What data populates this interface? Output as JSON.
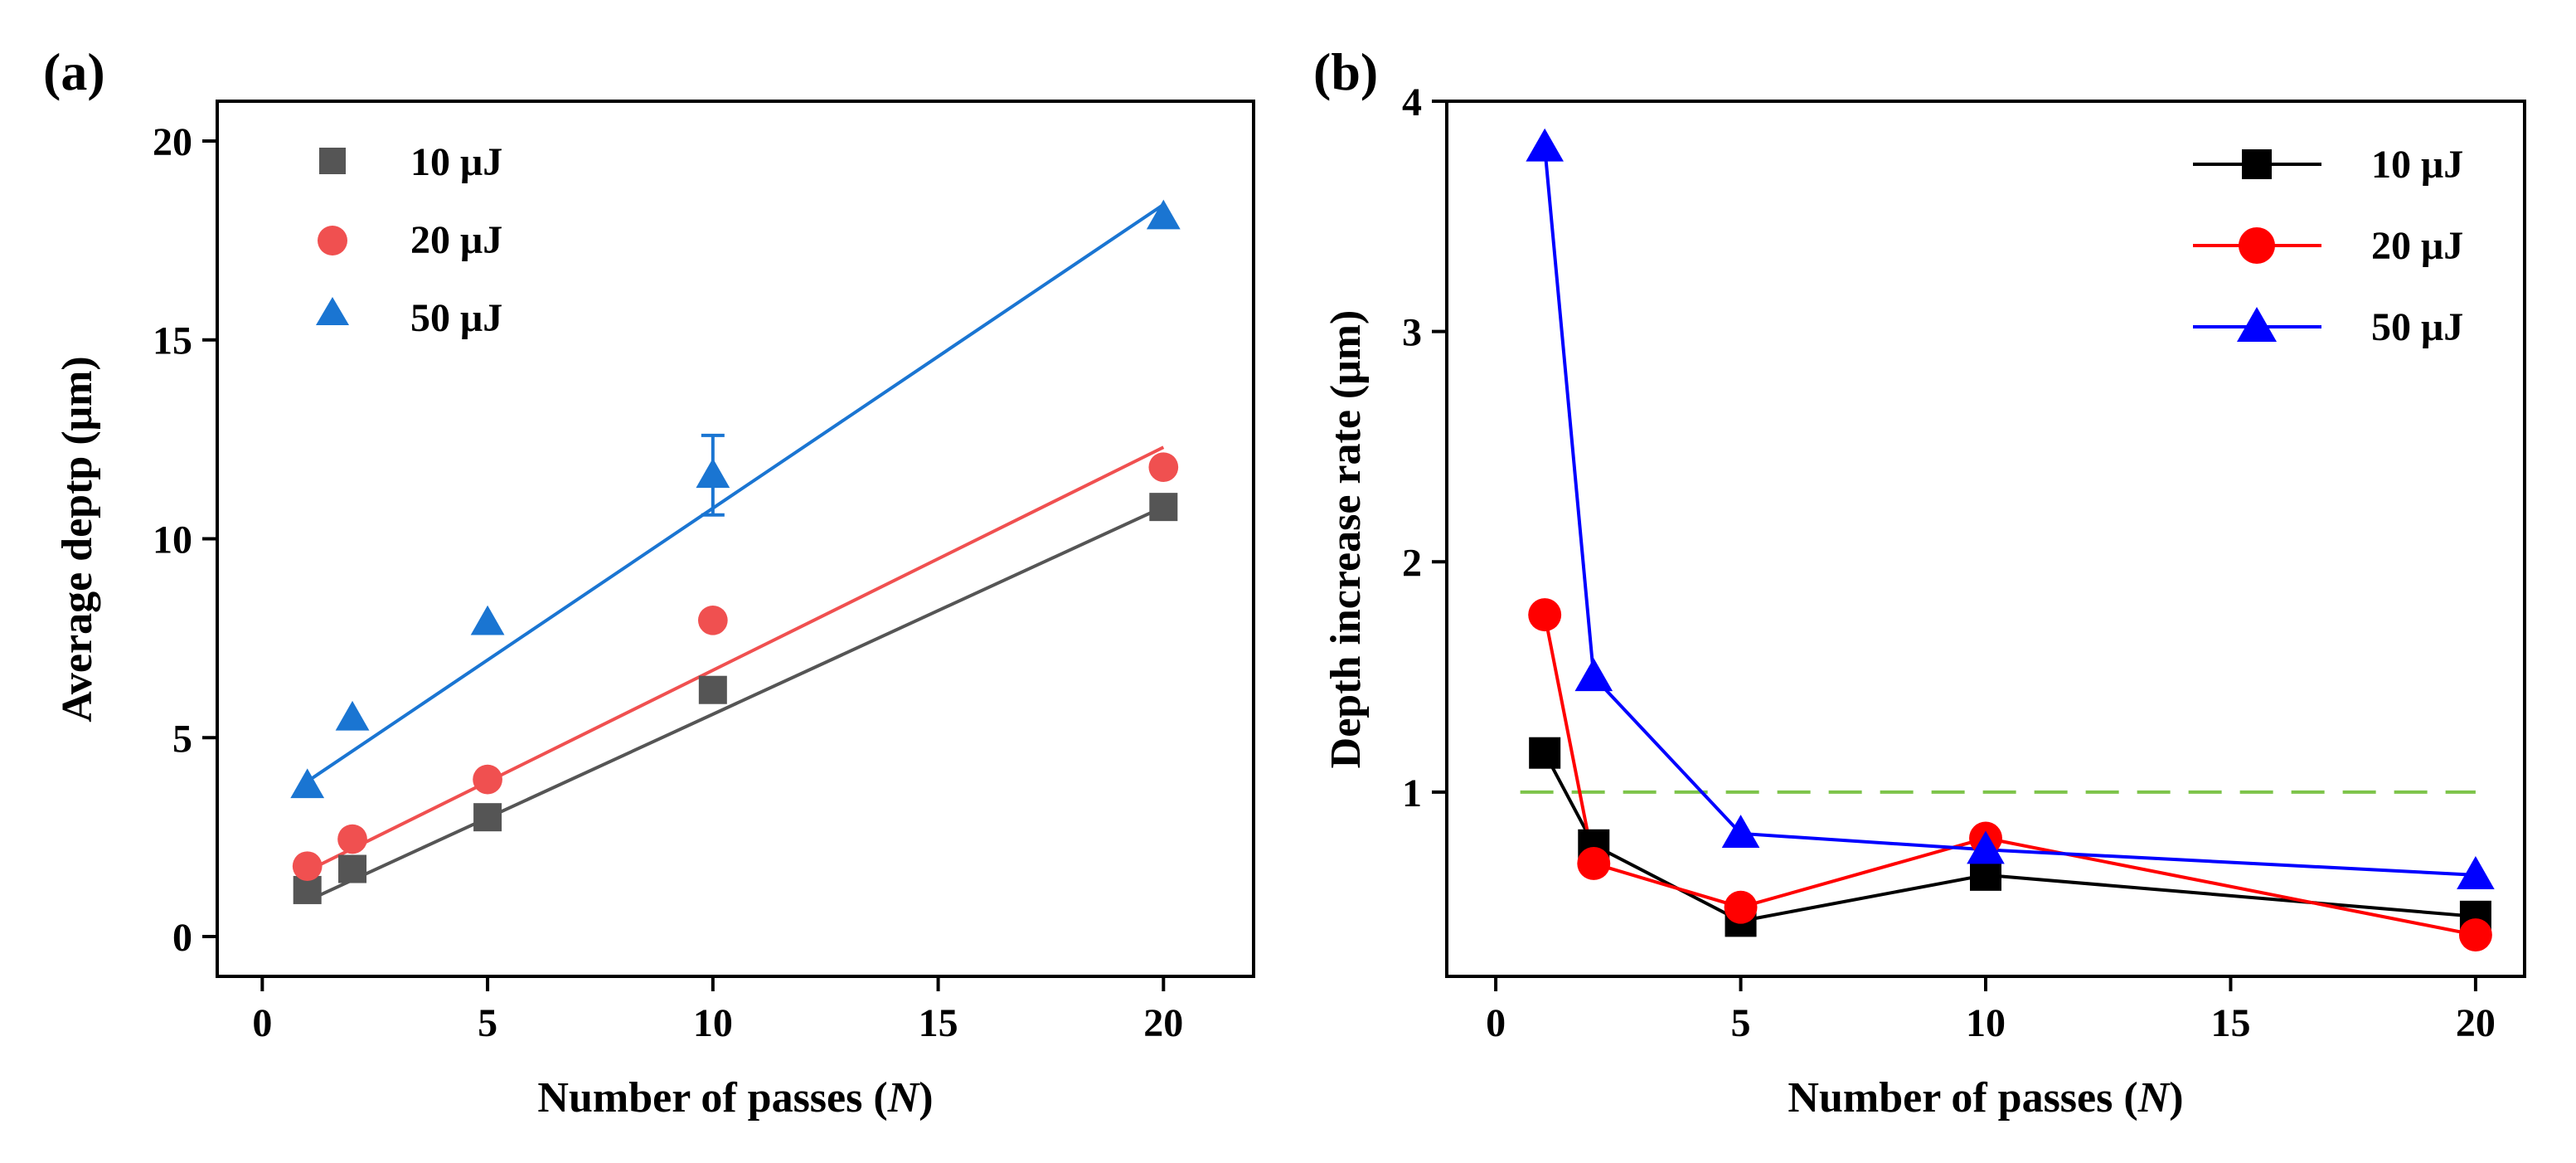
{
  "chart_data": [
    {
      "panel_label": "(a)",
      "type": "scatter",
      "xlabel_text": "Number of passes (",
      "xlabel_var": "N",
      "xlabel_end": ")",
      "ylabel": "Average deptp (μm)",
      "xlim": [
        -1,
        22
      ],
      "ylim": [
        -1,
        21
      ],
      "xticks": [
        0,
        5,
        10,
        15,
        20
      ],
      "yticks": [
        0,
        5,
        10,
        15,
        20
      ],
      "series": [
        {
          "name": "10 μJ",
          "color": "#555555",
          "marker": "square",
          "x": [
            1,
            2,
            5,
            10,
            20
          ],
          "y": [
            1.17,
            1.7,
            3.0,
            6.2,
            10.8
          ],
          "fit": [
            [
              1,
              0.9
            ],
            [
              20,
              10.8
            ]
          ]
        },
        {
          "name": "20 μJ",
          "color": "#f05050",
          "marker": "circle",
          "x": [
            1,
            2,
            5,
            10,
            20
          ],
          "y": [
            1.77,
            2.45,
            3.95,
            7.95,
            11.8
          ],
          "fit": [
            [
              1,
              1.65
            ],
            [
              20,
              12.3
            ]
          ]
        },
        {
          "name": "50 μJ",
          "color": "#1a75d2",
          "marker": "triangle",
          "x": [
            1,
            2,
            5,
            10,
            20
          ],
          "y": [
            3.8,
            5.5,
            7.9,
            11.6,
            18.1
          ],
          "fit": [
            [
              1,
              3.9
            ],
            [
              20,
              18.4
            ]
          ],
          "errorbar": {
            "x": 10,
            "low": 10.6,
            "high": 12.6
          }
        }
      ]
    },
    {
      "panel_label": "(b)",
      "type": "line",
      "xlabel_text": "Number of passes (",
      "xlabel_var": "N",
      "xlabel_end": ")",
      "ylabel": "Depth increase rate (μm)",
      "xlim": [
        -1,
        21
      ],
      "ylim": [
        0.2,
        4.0
      ],
      "xticks": [
        0,
        5,
        10,
        15,
        20
      ],
      "yticks": [
        1,
        2,
        3,
        4
      ],
      "reference_line": {
        "y": 1.0,
        "color": "#7dc44a",
        "style": "dashed",
        "x": [
          0.5,
          20
        ]
      },
      "series": [
        {
          "name": "10 μJ",
          "color": "#000000",
          "marker": "square",
          "x": [
            1,
            2,
            5,
            10,
            20
          ],
          "y": [
            1.17,
            0.77,
            0.44,
            0.64,
            0.46
          ]
        },
        {
          "name": "20 μJ",
          "color": "#ff0000",
          "marker": "circle",
          "x": [
            1,
            2,
            5,
            10,
            20
          ],
          "y": [
            1.77,
            0.69,
            0.5,
            0.8,
            0.38
          ]
        },
        {
          "name": "50 μJ",
          "color": "#0000ff",
          "marker": "triangle",
          "x": [
            1,
            2,
            5,
            10,
            20
          ],
          "y": [
            3.8,
            1.5,
            0.82,
            0.75,
            0.64
          ]
        }
      ]
    }
  ]
}
